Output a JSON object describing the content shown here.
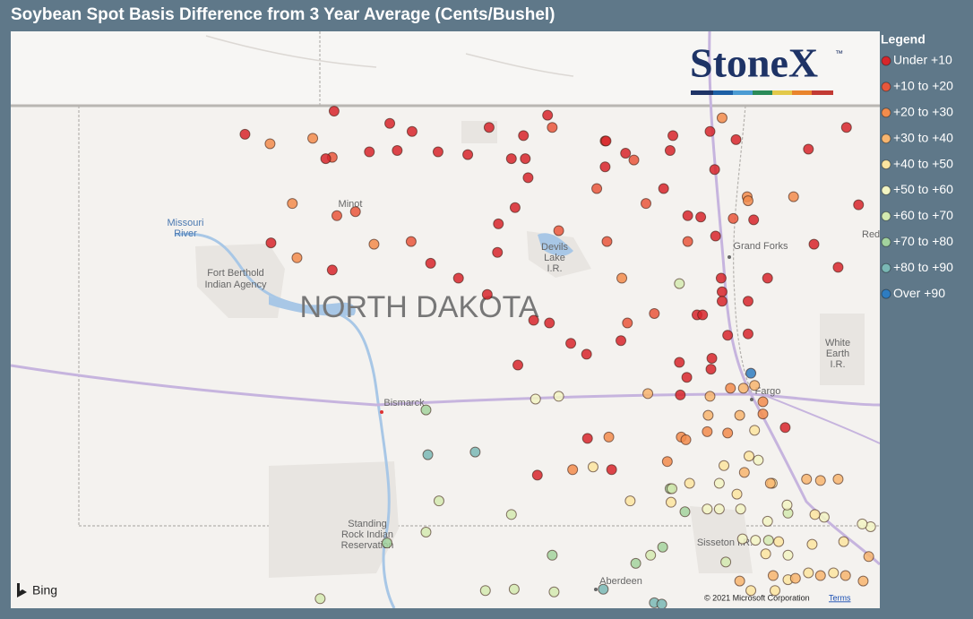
{
  "title": "Soybean Spot Basis Difference from 3 Year Average (Cents/Bushel)",
  "logo": {
    "text": "StoneX",
    "mark": "™"
  },
  "map_labels": {
    "minot": "Minot",
    "missouri_river": [
      "Missouri",
      "River"
    ],
    "fort_berthold": [
      "Fort Berthold",
      "Indian Agency"
    ],
    "state": "NORTH DAKOTA",
    "devils_lake": [
      "Devils",
      "Lake",
      "I.R."
    ],
    "grand_forks": "Grand Forks",
    "red": "Red",
    "white_earth": [
      "White",
      "Earth",
      "I.R."
    ],
    "fargo": "Fargo",
    "bismarck": "Bismarck",
    "standing_rock": [
      "Standing",
      "Rock Indian",
      "Reservation"
    ],
    "sisseton": "Sisseton I.R.",
    "aberdeen": "Aberdeen"
  },
  "attribution": {
    "provider": "Bing",
    "copyright": "© 2021 Microsoft Corporation",
    "terms": "Terms"
  },
  "legend": {
    "title": "Legend",
    "items": [
      {
        "label": "Under +10",
        "color": "#d7262b",
        "points": [
          [
            -101.3,
            48.96
          ],
          [
            -102.26,
            48.79
          ],
          [
            -100.7,
            48.87
          ],
          [
            -100.46,
            48.81
          ],
          [
            -99.63,
            48.84
          ],
          [
            -99.26,
            48.78
          ],
          [
            -101.39,
            48.61
          ],
          [
            -100.92,
            48.66
          ],
          [
            -100.62,
            48.67
          ],
          [
            -100.18,
            48.66
          ],
          [
            -99.86,
            48.64
          ],
          [
            -99.39,
            48.61
          ],
          [
            -99.24,
            48.61
          ],
          [
            -99.21,
            48.47
          ],
          [
            -99.0,
            48.93
          ],
          [
            -98.37,
            48.74
          ],
          [
            -98.16,
            48.65
          ],
          [
            -98.38,
            48.55
          ],
          [
            -97.68,
            48.67
          ],
          [
            -97.65,
            48.78
          ],
          [
            -97.25,
            48.81
          ],
          [
            -96.97,
            48.75
          ],
          [
            -97.2,
            48.53
          ],
          [
            -96.19,
            48.68
          ],
          [
            -95.78,
            48.84
          ],
          [
            -97.75,
            48.39
          ],
          [
            -99.35,
            48.25
          ],
          [
            -99.53,
            48.13
          ],
          [
            -99.54,
            47.92
          ],
          [
            -100.26,
            47.84
          ],
          [
            -99.96,
            47.73
          ],
          [
            -99.65,
            47.61
          ],
          [
            -99.15,
            47.42
          ],
          [
            -98.98,
            47.4
          ],
          [
            -98.75,
            47.25
          ],
          [
            -98.58,
            47.17
          ],
          [
            -98.21,
            47.27
          ],
          [
            -101.98,
            47.99
          ],
          [
            -101.32,
            47.79
          ],
          [
            -97.49,
            48.19
          ],
          [
            -97.35,
            48.18
          ],
          [
            -97.19,
            48.04
          ],
          [
            -96.78,
            48.16
          ],
          [
            -95.65,
            48.27
          ],
          [
            -96.13,
            47.98
          ],
          [
            -95.87,
            47.81
          ],
          [
            -97.13,
            47.73
          ],
          [
            -96.63,
            47.73
          ],
          [
            -97.12,
            47.63
          ],
          [
            -97.12,
            47.56
          ],
          [
            -96.84,
            47.56
          ],
          [
            -97.39,
            47.46
          ],
          [
            -97.33,
            47.46
          ],
          [
            -97.06,
            47.31
          ],
          [
            -96.84,
            47.32
          ],
          [
            -97.23,
            47.14
          ],
          [
            -97.58,
            47.11
          ],
          [
            -97.24,
            47.06
          ],
          [
            -97.5,
            47.0
          ],
          [
            -99.32,
            47.09
          ],
          [
            -97.57,
            46.87
          ],
          [
            -96.44,
            46.63
          ],
          [
            -98.57,
            46.55
          ],
          [
            -98.31,
            46.32
          ],
          [
            -99.11,
            46.28
          ]
        ]
      },
      {
        "label": "+10 to +20",
        "color": "#e9573c",
        "points": [
          [
            -101.32,
            48.62
          ],
          [
            -101.07,
            48.22
          ],
          [
            -101.27,
            48.19
          ],
          [
            -100.47,
            48.0
          ],
          [
            -98.36,
            48.0
          ],
          [
            -98.07,
            48.6
          ],
          [
            -98.47,
            48.39
          ],
          [
            -97.94,
            48.28
          ],
          [
            -97.49,
            48.0
          ],
          [
            -97.0,
            48.17
          ],
          [
            -97.85,
            47.47
          ],
          [
            -98.14,
            47.4
          ],
          [
            -98.88,
            48.08
          ],
          [
            -98.95,
            48.84
          ],
          [
            -98.38,
            48.74
          ]
        ]
      },
      {
        "label": "+20 to +30",
        "color": "#f28c4c",
        "points": [
          [
            -101.53,
            48.76
          ],
          [
            -101.75,
            48.28
          ],
          [
            -101.99,
            48.72
          ],
          [
            -100.87,
            47.98
          ],
          [
            -101.7,
            47.88
          ],
          [
            -96.85,
            48.33
          ],
          [
            -96.84,
            48.3
          ],
          [
            -96.35,
            48.33
          ],
          [
            -97.12,
            48.91
          ],
          [
            -98.2,
            47.73
          ],
          [
            -97.56,
            46.56
          ],
          [
            -97.51,
            46.54
          ],
          [
            -98.34,
            46.56
          ],
          [
            -98.73,
            46.32
          ],
          [
            -97.71,
            46.38
          ],
          [
            -96.68,
            46.73
          ],
          [
            -97.28,
            46.6
          ],
          [
            -97.06,
            46.59
          ],
          [
            -96.68,
            46.82
          ],
          [
            -97.03,
            46.92
          ]
        ]
      },
      {
        "label": "+30 to +40",
        "color": "#f7b56f",
        "points": [
          [
            -97.92,
            46.88
          ],
          [
            -97.25,
            46.86
          ],
          [
            -97.27,
            46.72
          ],
          [
            -96.93,
            46.72
          ],
          [
            -96.89,
            46.92
          ],
          [
            -96.77,
            46.94
          ],
          [
            -95.87,
            46.25
          ],
          [
            -96.06,
            46.24
          ],
          [
            -96.21,
            46.25
          ],
          [
            -95.54,
            45.68
          ],
          [
            -95.6,
            45.5
          ],
          [
            -95.79,
            45.54
          ],
          [
            -96.06,
            45.54
          ],
          [
            -96.57,
            45.54
          ],
          [
            -96.88,
            46.3
          ],
          [
            -96.6,
            46.22
          ],
          [
            -96.33,
            45.52
          ],
          [
            -96.93,
            45.5
          ]
        ]
      },
      {
        "label": "+40 to +50",
        "color": "#fbe5a0",
        "points": [
          [
            -98.51,
            46.34
          ],
          [
            -98.11,
            46.09
          ],
          [
            -96.83,
            46.42
          ],
          [
            -96.77,
            46.61
          ],
          [
            -97.1,
            46.35
          ],
          [
            -96.96,
            46.14
          ],
          [
            -96.58,
            46.22
          ],
          [
            -97.67,
            46.08
          ],
          [
            -97.47,
            46.22
          ],
          [
            -96.12,
            45.99
          ],
          [
            -95.81,
            45.79
          ],
          [
            -96.15,
            45.77
          ],
          [
            -96.51,
            45.79
          ],
          [
            -96.65,
            45.7
          ],
          [
            -96.41,
            45.51
          ],
          [
            -96.19,
            45.56
          ],
          [
            -95.92,
            45.56
          ],
          [
            -96.55,
            45.43
          ],
          [
            -96.81,
            45.43
          ]
        ]
      },
      {
        "label": "+50 to +60",
        "color": "#f2f5c3",
        "points": [
          [
            -99.13,
            46.84
          ],
          [
            -98.88,
            46.86
          ],
          [
            -97.28,
            46.03
          ],
          [
            -97.15,
            46.03
          ],
          [
            -96.92,
            46.03
          ],
          [
            -97.15,
            46.22
          ],
          [
            -96.63,
            45.94
          ],
          [
            -96.42,
            46.06
          ],
          [
            -96.9,
            45.81
          ],
          [
            -96.76,
            45.8
          ],
          [
            -96.41,
            45.69
          ],
          [
            -95.52,
            45.9
          ],
          [
            -95.61,
            45.92
          ],
          [
            -96.73,
            46.39
          ],
          [
            -96.02,
            45.97
          ]
        ]
      },
      {
        "label": "+60 to +70",
        "color": "#d3eab0",
        "points": [
          [
            -97.58,
            47.69
          ],
          [
            -100.17,
            46.09
          ],
          [
            -99.39,
            45.99
          ],
          [
            -100.31,
            45.86
          ],
          [
            -99.67,
            45.43
          ],
          [
            -99.36,
            45.44
          ],
          [
            -98.93,
            45.42
          ],
          [
            -101.45,
            45.37
          ],
          [
            -97.66,
            46.18
          ],
          [
            -97.89,
            45.69
          ],
          [
            -97.08,
            45.64
          ],
          [
            -96.62,
            45.8
          ],
          [
            -96.41,
            46.0
          ]
        ]
      },
      {
        "label": "+70 to +80",
        "color": "#a3d39e",
        "points": [
          [
            -100.31,
            46.76
          ],
          [
            -100.73,
            45.78
          ],
          [
            -98.95,
            45.69
          ],
          [
            -97.76,
            45.75
          ],
          [
            -98.05,
            45.63
          ],
          [
            -97.52,
            46.01
          ],
          [
            -97.68,
            46.18
          ]
        ]
      },
      {
        "label": "+80 to +90",
        "color": "#7ab8b5",
        "points": [
          [
            -100.29,
            46.43
          ],
          [
            -99.78,
            46.45
          ],
          [
            -98.4,
            45.44
          ],
          [
            -97.85,
            45.34
          ],
          [
            -97.77,
            45.33
          ]
        ]
      },
      {
        "label": "Over +90",
        "color": "#2e7cc0",
        "points": [
          [
            -96.81,
            47.03
          ]
        ]
      }
    ]
  }
}
